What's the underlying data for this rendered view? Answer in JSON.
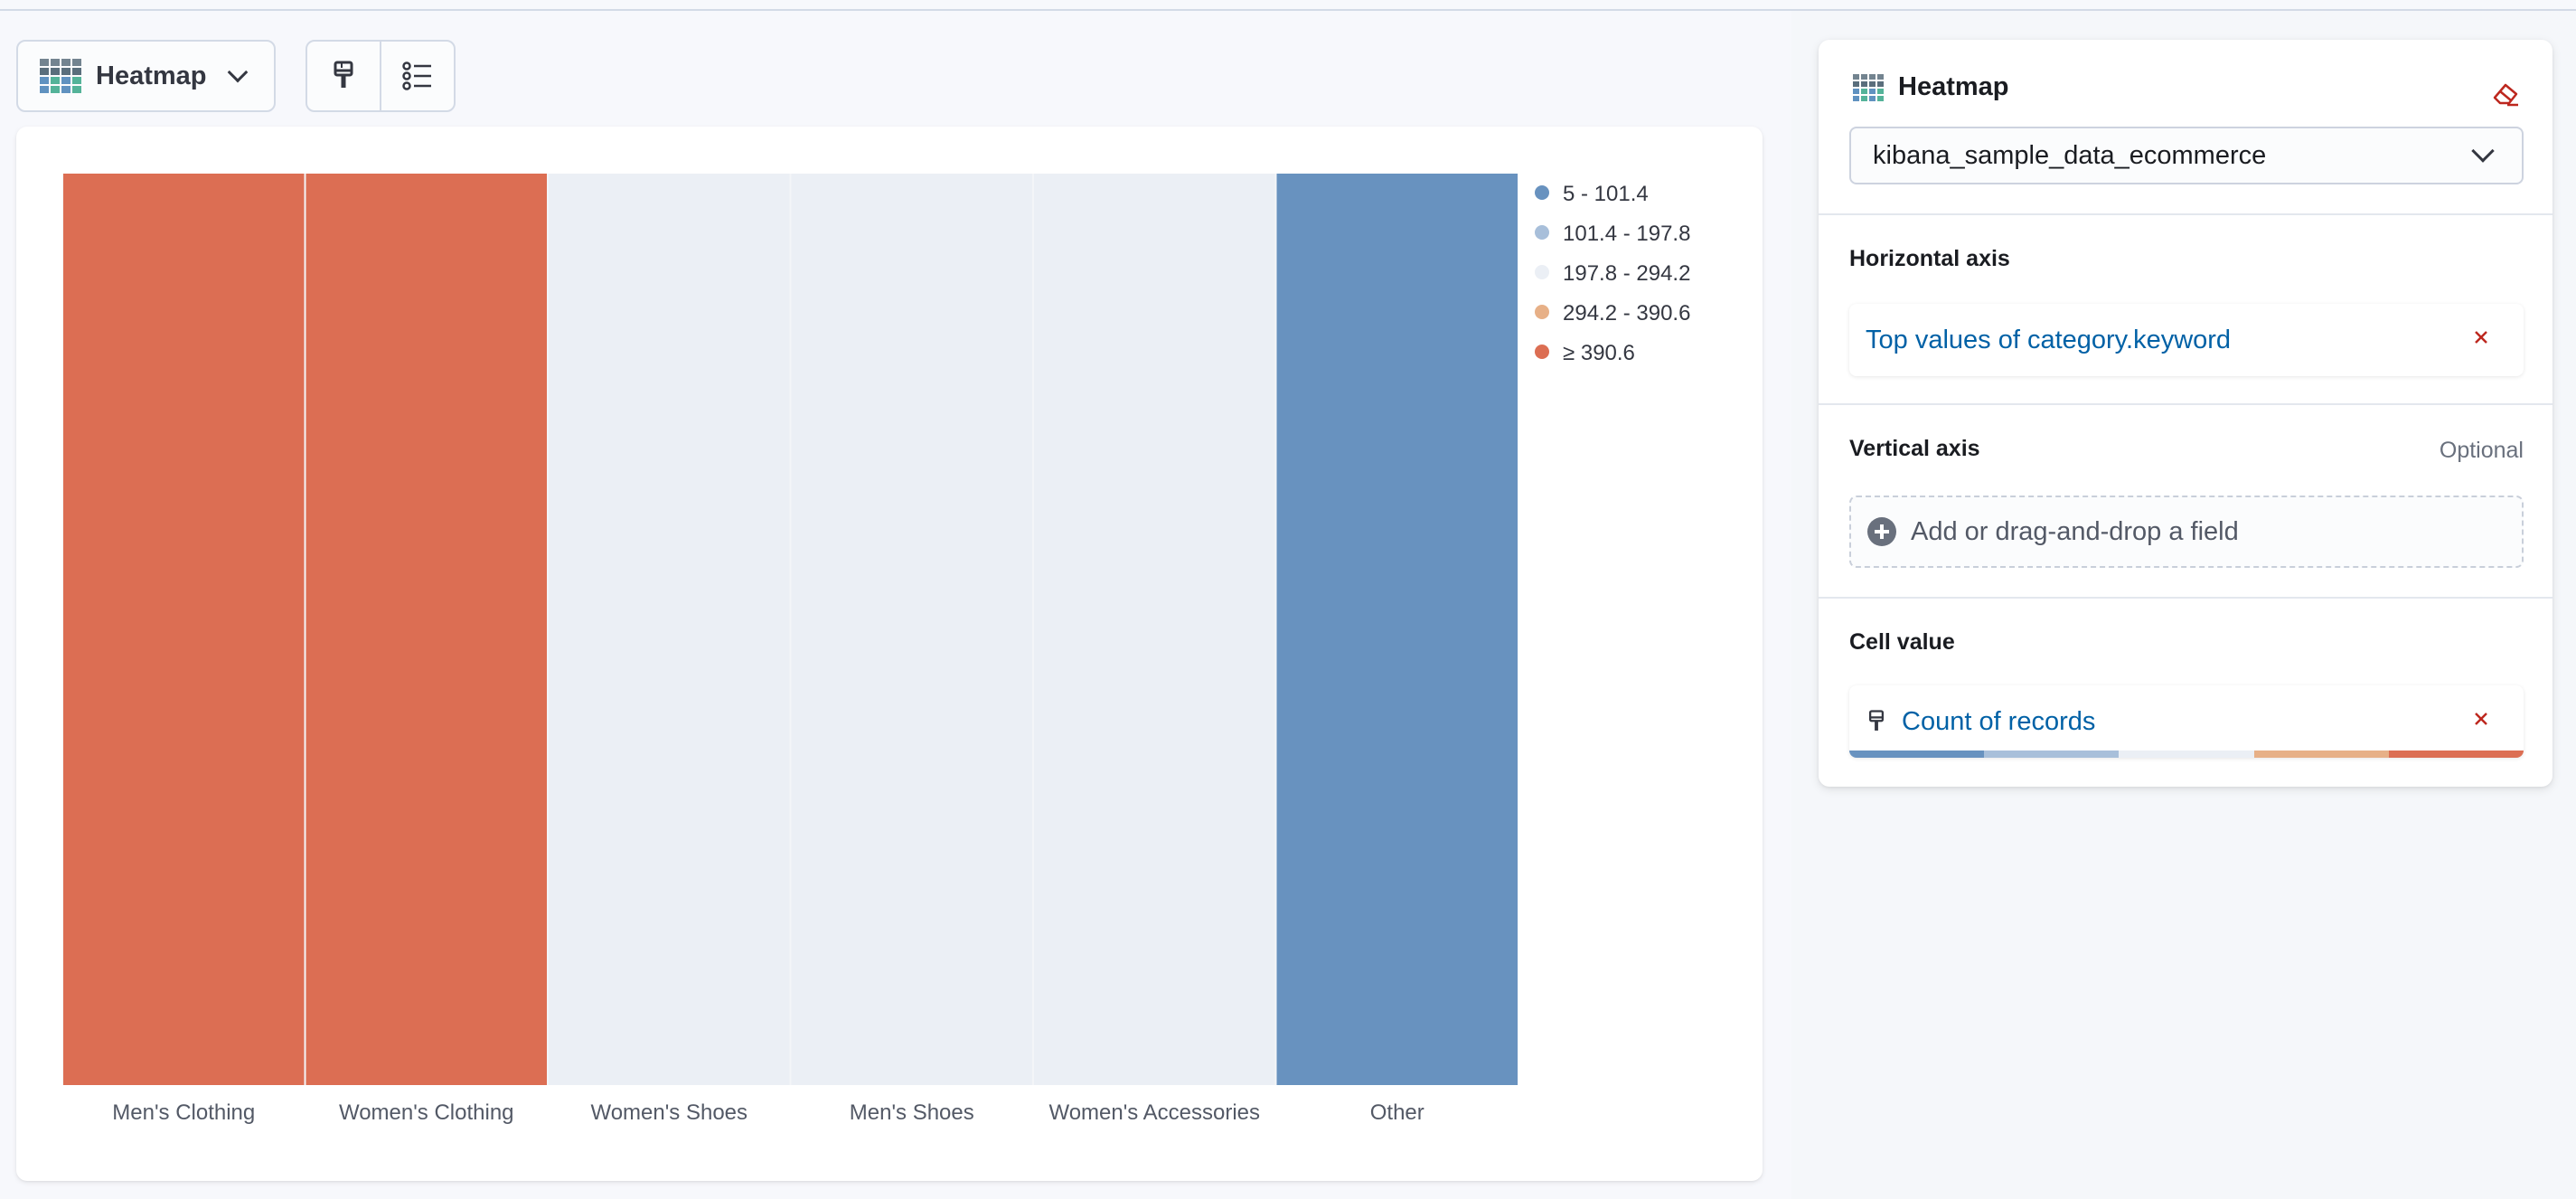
{
  "toolbar": {
    "chart_type_label": "Heatmap"
  },
  "config": {
    "title": "Heatmap",
    "data_view": "kibana_sample_data_ecommerce",
    "horizontal_axis": {
      "title": "Horizontal axis",
      "field_label": "Top values of category.keyword"
    },
    "vertical_axis": {
      "title": "Vertical axis",
      "optional_label": "Optional",
      "placeholder": "Add or drag-and-drop a field"
    },
    "cell_value": {
      "title": "Cell value",
      "field_label": "Count of records"
    }
  },
  "colors": {
    "palette": [
      "#6892bf",
      "#a8bfda",
      "#ebeff5",
      "#e7b087",
      "#dc6e53"
    ],
    "brand_icon": [
      "#54b399",
      "#6092c0",
      "#d36086",
      "#9170b8"
    ],
    "accent_red": "#bd271e",
    "link_blue": "#0061a6"
  },
  "chart_data": {
    "type": "heatmap",
    "categories": [
      "Men's Clothing",
      "Women's Clothing",
      "Women's Shoes",
      "Men's Shoes",
      "Women's Accessories",
      "Other"
    ],
    "color_bands": [
      4,
      4,
      2,
      2,
      2,
      0
    ],
    "legend": [
      "5 - 101.4",
      "101.4 - 197.8",
      "197.8 - 294.2",
      "294.2 - 390.6",
      "≥ 390.6"
    ],
    "legend_position": "right",
    "xlabel": "",
    "ylabel": ""
  }
}
